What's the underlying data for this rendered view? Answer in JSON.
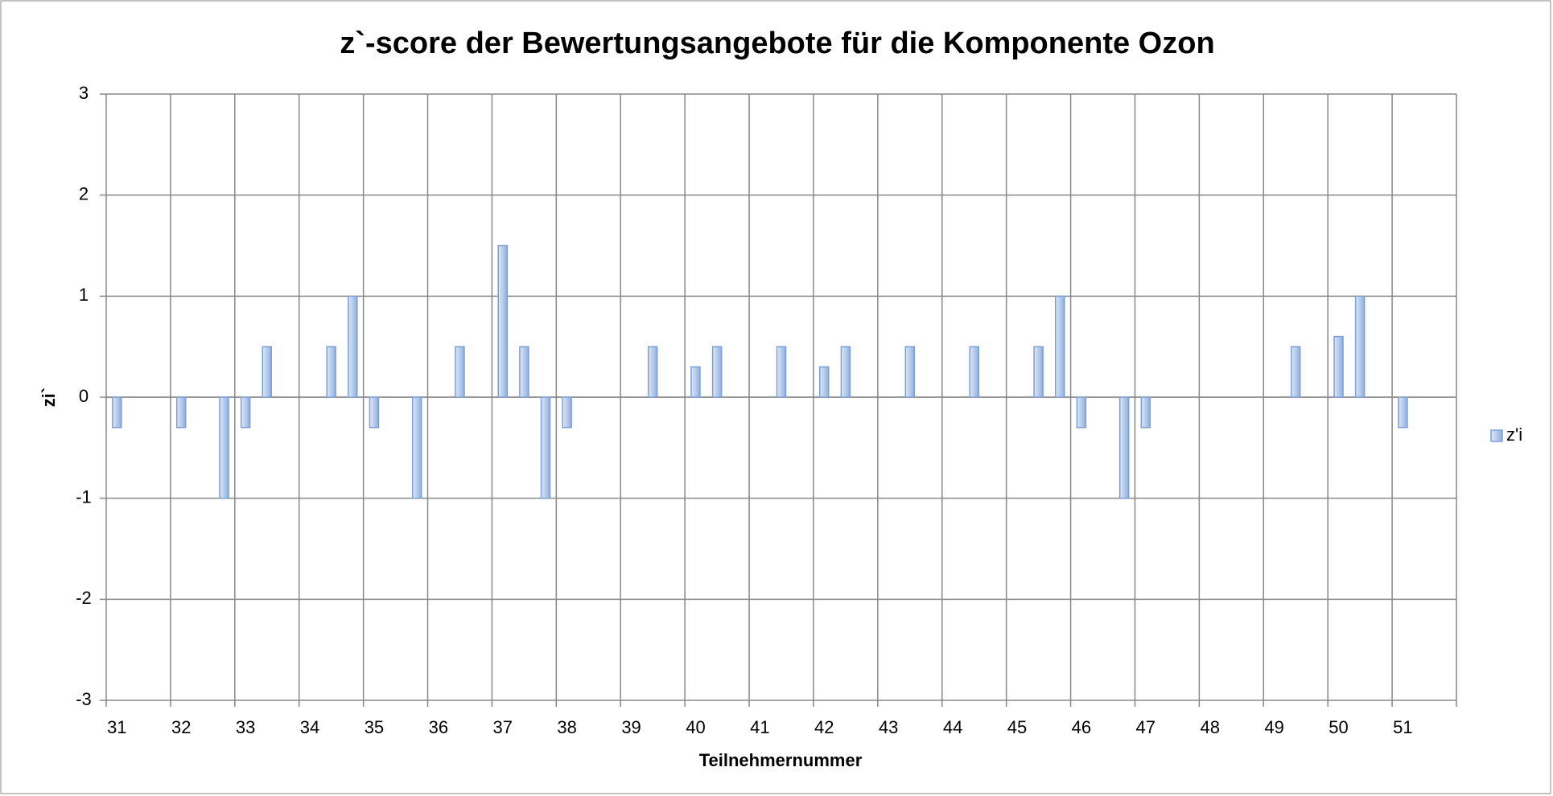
{
  "chart_data": {
    "type": "bar",
    "title": "z`-score der Bewertungsangebote für die Komponente Ozon",
    "x_label": "Teilnehmernummer",
    "y_label": "zi`",
    "categories": [
      "31",
      null,
      null,
      "32",
      null,
      null,
      "33",
      null,
      null,
      "34",
      null,
      null,
      "35",
      null,
      null,
      "36",
      null,
      null,
      "37",
      null,
      null,
      "38",
      null,
      null,
      "39",
      null,
      null,
      "40",
      null,
      null,
      "41",
      null,
      null,
      "42",
      null,
      null,
      "43",
      null,
      null,
      "44",
      null,
      null,
      "45",
      null,
      null,
      "46",
      null,
      null,
      "47",
      null,
      null,
      "48",
      null,
      null,
      "49",
      null,
      null,
      "50",
      null,
      null,
      "51",
      null,
      null
    ],
    "series": [
      {
        "name": "z'i",
        "color": "#7b9fd6",
        "values": [
          -0.3,
          null,
          null,
          -0.3,
          null,
          -1,
          -0.3,
          0.5,
          null,
          null,
          0.5,
          1,
          -0.3,
          null,
          -1,
          null,
          0.5,
          null,
          1.5,
          0.5,
          -1,
          -0.3,
          null,
          null,
          null,
          0.5,
          null,
          0.3,
          0.5,
          null,
          null,
          0.5,
          null,
          0.3,
          0.5,
          null,
          null,
          0.5,
          null,
          null,
          0.5,
          null,
          null,
          0.5,
          1,
          -0.3,
          null,
          -1,
          -0.3,
          null,
          null,
          null,
          null,
          null,
          null,
          0.5,
          null,
          0.6,
          1,
          null,
          -0.3,
          null,
          null
        ]
      }
    ],
    "ylim": [
      -3,
      3
    ],
    "yticks": [
      -3,
      -2,
      -1,
      0,
      1,
      2,
      3
    ],
    "grid": true,
    "legend": "right"
  }
}
